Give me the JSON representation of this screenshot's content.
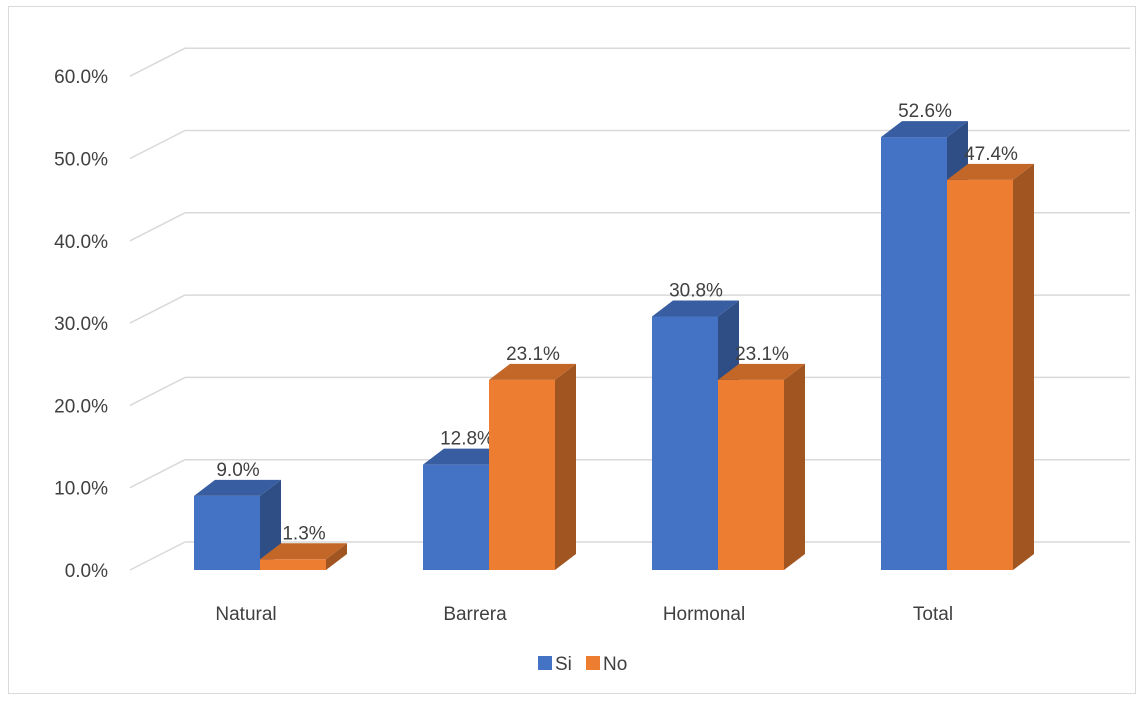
{
  "chart_data": {
    "type": "bar",
    "categories": [
      "Natural",
      "Barrera",
      "Hormonal",
      "Total"
    ],
    "series": [
      {
        "name": "Si",
        "values": [
          9.0,
          12.8,
          30.8,
          52.6
        ],
        "labels": [
          "9.0%",
          "12.8%",
          "30.8%",
          "52.6%"
        ],
        "color": "#4472C4"
      },
      {
        "name": "No",
        "values": [
          1.3,
          23.1,
          23.1,
          47.4
        ],
        "labels": [
          "1.3%",
          "23.1%",
          "23.1%",
          "47.4%"
        ],
        "color": "#ED7D31"
      }
    ],
    "y_ticks": [
      "0.0%",
      "10.0%",
      "20.0%",
      "30.0%",
      "40.0%",
      "50.0%",
      "60.0%"
    ],
    "ylim": [
      0,
      60
    ],
    "grid": true,
    "three_d": true,
    "legend_position": "bottom",
    "title": "",
    "xlabel": "",
    "ylabel": ""
  }
}
